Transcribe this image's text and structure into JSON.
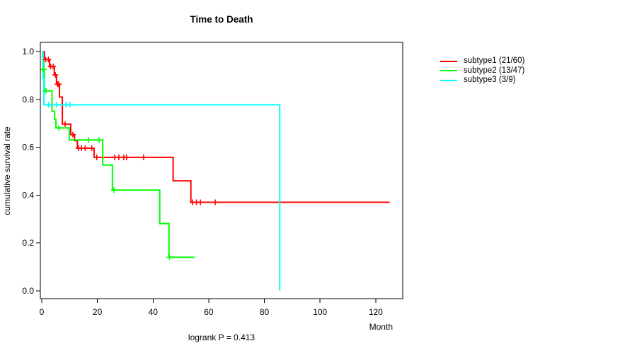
{
  "chart_data": {
    "type": "line",
    "subtype": "kaplan-meier-step",
    "title": "Time to Death",
    "xlabel": "Month",
    "ylabel": "cumulative survival rate",
    "footnote": "logrank P = 0.413",
    "xlim": [
      -0.5,
      129.7
    ],
    "ylim": [
      -0.033,
      1.039
    ],
    "xticks": [
      0,
      20,
      40,
      60,
      80,
      100,
      120
    ],
    "xtick_labels": [
      "0",
      "20",
      "40",
      "60",
      "80",
      "100",
      "120"
    ],
    "yticks": [
      0.0,
      0.2,
      0.4,
      0.6,
      0.8,
      1.0
    ],
    "ytick_labels": [
      "0.0",
      "0.2",
      "0.4",
      "0.6",
      "0.8",
      "1.0"
    ],
    "grid": false,
    "legend_position": "right-outside",
    "axis_color": "#000000",
    "series": [
      {
        "name": "subtype1",
        "label": "subtype1 (21/60)",
        "events": 21,
        "n": 60,
        "color": "#ff0000",
        "steps": [
          [
            0,
            1.0
          ],
          [
            0.95,
            0.967
          ],
          [
            2.8,
            0.938
          ],
          [
            4.5,
            0.903
          ],
          [
            5.3,
            0.864
          ],
          [
            6.4,
            0.81
          ],
          [
            7.4,
            0.697
          ],
          [
            10.4,
            0.653
          ],
          [
            11.8,
            0.628
          ],
          [
            12.8,
            0.596
          ],
          [
            18.8,
            0.558
          ],
          [
            47.2,
            0.46
          ],
          [
            53.6,
            0.37
          ],
          [
            125,
            0.37
          ]
        ],
        "censors": [
          [
            1.4,
            0.967
          ],
          [
            2.4,
            0.967
          ],
          [
            3.2,
            0.938
          ],
          [
            4.1,
            0.938
          ],
          [
            4.9,
            0.903
          ],
          [
            5.7,
            0.864
          ],
          [
            6.1,
            0.864
          ],
          [
            8.4,
            0.697
          ],
          [
            11.2,
            0.653
          ],
          [
            13.2,
            0.596
          ],
          [
            14.3,
            0.596
          ],
          [
            15.6,
            0.596
          ],
          [
            18.0,
            0.596
          ],
          [
            19.8,
            0.558
          ],
          [
            26.2,
            0.558
          ],
          [
            27.7,
            0.558
          ],
          [
            29.5,
            0.558
          ],
          [
            30.5,
            0.558
          ],
          [
            36.6,
            0.558
          ],
          [
            54.2,
            0.37
          ],
          [
            55.6,
            0.37
          ],
          [
            57.0,
            0.37
          ],
          [
            62.3,
            0.37
          ]
        ]
      },
      {
        "name": "subtype2",
        "label": "subtype2 (13/47)",
        "events": 13,
        "n": 47,
        "color": "#00ff00",
        "steps": [
          [
            0,
            1.0
          ],
          [
            0.35,
            0.979
          ],
          [
            0.55,
            0.957
          ],
          [
            0.75,
            0.926
          ],
          [
            0.95,
            0.836
          ],
          [
            3.7,
            0.751
          ],
          [
            4.6,
            0.718
          ],
          [
            5.1,
            0.681
          ],
          [
            9.9,
            0.631
          ],
          [
            21.9,
            0.526
          ],
          [
            25.4,
            0.421
          ],
          [
            42.4,
            0.281
          ],
          [
            45.7,
            0.14
          ],
          [
            54.9,
            0.14
          ]
        ],
        "censors": [
          [
            0.7,
            0.926
          ],
          [
            1.5,
            0.836
          ],
          [
            6.2,
            0.681
          ],
          [
            16.8,
            0.631
          ],
          [
            20.6,
            0.631
          ],
          [
            25.9,
            0.421
          ],
          [
            45.9,
            0.14
          ]
        ]
      },
      {
        "name": "subtype3",
        "label": "subtype3 (3/9)",
        "events": 3,
        "n": 9,
        "color": "#00ffff",
        "steps": [
          [
            0,
            1.0
          ],
          [
            0.45,
            0.889
          ],
          [
            0.8,
            0.778
          ],
          [
            85.5,
            0.778
          ],
          [
            85.5,
            0.0
          ]
        ],
        "censors": [
          [
            2.4,
            0.778
          ],
          [
            5.3,
            0.778
          ],
          [
            8.7,
            0.778
          ],
          [
            10.2,
            0.778
          ]
        ]
      }
    ]
  }
}
